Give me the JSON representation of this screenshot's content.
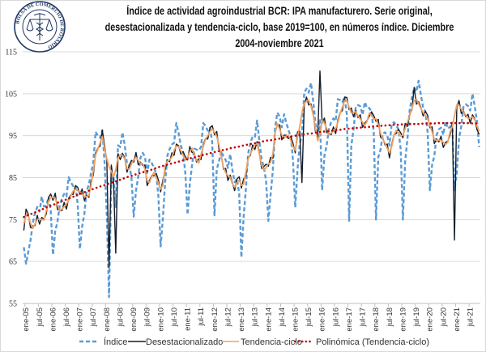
{
  "logo": {
    "text": "BOLSA DE COMERCIO DE ROSARIO",
    "color": "#1F3864"
  },
  "title_lines": [
    "Índice de actividad agroindustrial BCR: IPA manufacturero. Serie original,",
    "desestacionalizada y tendencia-ciclo, base 2019=100, en números índice. Diciembre",
    "2004-noviembre 2021"
  ],
  "chart_data": {
    "type": "line",
    "title": "Índice de actividad agroindustrial BCR: IPA manufacturero. Serie original, desestacionalizada y tendencia-ciclo, base 2019=100, en números índice. Diciembre 2004-noviembre 2021",
    "period": [
      "2004-12",
      "2021-11"
    ],
    "frequency": "monthly",
    "xlabel": "",
    "ylabel": "",
    "ylim": [
      55,
      115
    ],
    "yticks": [
      55,
      65,
      75,
      85,
      95,
      105,
      115
    ],
    "xtick_labels": [
      "ene-05",
      "jul-05",
      "ene-06",
      "jul-06",
      "ene-07",
      "jul-07",
      "ene-08",
      "jul-08",
      "ene-09",
      "jul-09",
      "ene-10",
      "jul-10",
      "ene-11",
      "jul-11",
      "ene-12",
      "jul-12",
      "ene-13",
      "jul-13",
      "ene-14",
      "jul-14",
      "ene-15",
      "jul-15",
      "ene-16",
      "jul-16",
      "ene-17",
      "jul-17",
      "ene-18",
      "jul-18",
      "ene-19",
      "jul-19",
      "ene-20",
      "jul-20",
      "ene-21",
      "jul-21"
    ],
    "grid": true,
    "legend_position": "bottom",
    "series": [
      {
        "name": "Índice",
        "color": "#5B9BD5",
        "style": "dashed",
        "values": [
          68.4,
          64.5,
          67.3,
          70.1,
          74.2,
          76.6,
          78.0,
          76.9,
          80.5,
          78.1,
          78.3,
          80.3,
          77.1,
          66.6,
          72.3,
          74.4,
          78.3,
          80.1,
          81.1,
          80.5,
          85.1,
          83.9,
          83.0,
          83.1,
          78.7,
          68.0,
          73.3,
          76.5,
          81.8,
          83.3,
          86.2,
          88.6,
          95.9,
          95.0,
          94.5,
          96.3,
          88.6,
          75.9,
          56.5,
          85.0,
          85.0,
          78.0,
          92.7,
          92.3,
          95.8,
          92.7,
          88.3,
          87.9,
          85.1,
          75.7,
          82.0,
          85.1,
          89.7,
          90.9,
          90.0,
          86.1,
          89.3,
          88.5,
          87.4,
          86.0,
          80.4,
          68.6,
          75.4,
          83.9,
          90.2,
          91.8,
          92.9,
          93.3,
          98.0,
          95.6,
          92.6,
          91.2,
          86.0,
          76.2,
          83.4,
          88.0,
          91.9,
          91.7,
          91.5,
          92.3,
          98.0,
          97.3,
          96.2,
          96.9,
          93.4,
          76.0,
          87.0,
          88.8,
          91.4,
          90.0,
          89.2,
          87.3,
          90.6,
          86.7,
          83.9,
          84.7,
          81.2,
          66.0,
          75.7,
          82.4,
          90.7,
          93.3,
          94.8,
          94.7,
          98.6,
          93.8,
          89.2,
          87.6,
          84.2,
          74.7,
          80.8,
          86.6,
          96.9,
          100.5,
          99.6,
          97.0,
          100.1,
          98.1,
          96.3,
          94.8,
          89.2,
          77.9,
          86.9,
          93.1,
          95.0,
          105.3,
          106.2,
          105.3,
          107.6,
          103.2,
          98.1,
          94.7,
          99.0,
          82.0,
          90.2,
          92.7,
          96.6,
          98.2,
          99.1,
          98.5,
          103.7,
          103.5,
          103.0,
          104.2,
          100.1,
          74.7,
          92.6,
          96.5,
          102.0,
          102.3,
          102.0,
          100.0,
          103.0,
          101.6,
          101.6,
          100.7,
          95.8,
          75.0,
          89.9,
          91.6,
          95.5,
          95.8,
          95.0,
          92.7,
          97.9,
          98.2,
          97.5,
          96.5,
          91.7,
          75.0,
          88.9,
          94.2,
          101.1,
          104.1,
          106.5,
          105.5,
          108.1,
          104.7,
          101.7,
          100.8,
          95.9,
          82.0,
          88.1,
          90.1,
          95.2,
          96.5,
          96.9,
          95.2,
          98.4,
          96.7,
          97.1,
          98.1,
          82.0,
          86.0,
          94.4,
          97.3,
          101.9,
          102.5,
          102.1,
          101.0,
          105.0,
          102.0,
          98.5,
          92.3
        ]
      },
      {
        "name": "Desestacionalizado",
        "color": "#141c2b",
        "style": "solid",
        "values": [
          72.4,
          77.5,
          76.3,
          73.1,
          73.2,
          73.6,
          76.0,
          73.9,
          75.5,
          75.1,
          76.3,
          80.3,
          81.1,
          79.6,
          81.3,
          77.4,
          77.3,
          77.1,
          79.1,
          77.5,
          80.1,
          80.9,
          81.0,
          83.1,
          82.7,
          81.0,
          82.3,
          79.5,
          80.8,
          80.3,
          84.2,
          85.6,
          90.9,
          92.0,
          92.5,
          96.3,
          92.6,
          88.9,
          63.5,
          88.0,
          84.0,
          67.0,
          90.7,
          89.3,
          90.8,
          89.7,
          86.3,
          87.9,
          89.1,
          88.7,
          91.0,
          88.1,
          88.7,
          87.9,
          88.0,
          83.1,
          84.3,
          85.5,
          85.4,
          86.0,
          84.4,
          81.6,
          84.4,
          86.9,
          89.2,
          88.8,
          90.9,
          90.3,
          93.0,
          92.6,
          90.6,
          91.2,
          90.0,
          89.2,
          92.4,
          91.0,
          90.9,
          88.7,
          89.5,
          89.3,
          93.0,
          94.3,
          94.2,
          96.9,
          97.4,
          95.2,
          96.0,
          91.8,
          90.4,
          87.0,
          87.2,
          84.3,
          85.6,
          83.7,
          81.9,
          84.7,
          85.2,
          82.5,
          84.7,
          85.4,
          89.7,
          90.3,
          92.8,
          91.7,
          93.6,
          90.8,
          87.2,
          87.6,
          88.2,
          87.7,
          89.8,
          89.6,
          95.9,
          97.5,
          97.6,
          94.0,
          95.1,
          95.1,
          94.3,
          94.8,
          93.2,
          90.9,
          95.9,
          96.1,
          83.8,
          102.3,
          104.2,
          102.3,
          102.6,
          100.2,
          96.1,
          94.7,
          110.4,
          98.0,
          99.2,
          95.7,
          95.6,
          95.2,
          97.1,
          95.5,
          98.7,
          100.5,
          101.0,
          104.2,
          104.1,
          101.2,
          101.6,
          99.5,
          101.0,
          99.3,
          100.0,
          97.0,
          98.0,
          98.6,
          99.6,
          100.7,
          99.8,
          98.4,
          98.9,
          94.6,
          94.5,
          92.8,
          93.0,
          89.7,
          92.9,
          95.2,
          95.5,
          96.5,
          95.7,
          94.5,
          97.9,
          97.2,
          100.1,
          101.1,
          106.5,
          102.5,
          103.1,
          101.7,
          99.7,
          100.8,
          99.9,
          96.9,
          97.1,
          93.1,
          94.2,
          93.5,
          94.9,
          92.2,
          93.4,
          93.7,
          95.1,
          98.1,
          70.1,
          101.7,
          103.4,
          100.3,
          100.9,
          99.5,
          100.1,
          98.0,
          100.0,
          99.0,
          96.5,
          95.3
        ]
      },
      {
        "name": "Tendencia-ciclo",
        "color": "#F0A060",
        "style": "solid",
        "values": [
          74.0,
          76.0,
          75.9,
          74.1,
          72.9,
          74.0,
          75.0,
          75.1,
          75.0,
          74.9,
          77.1,
          79.4,
          80.3,
          80.2,
          80.1,
          78.4,
          77.0,
          77.5,
          78.1,
          78.7,
          79.6,
          80.7,
          81.8,
          82.2,
          81.9,
          81.6,
          81.1,
          80.5,
          80.5,
          80.7,
          83.2,
          86.8,
          90.4,
          91.8,
          93.3,
          94.8,
          91.8,
          89.5,
          87.6,
          86.5,
          85.2,
          86.9,
          89.7,
          90.5,
          90.3,
          89.5,
          87.1,
          87.0,
          88.3,
          89.3,
          89.8,
          89.1,
          88.4,
          88.3,
          87.0,
          84.3,
          83.8,
          85.3,
          86.2,
          85.1,
          83.6,
          82.2,
          83.2,
          87.9,
          88.9,
          89.2,
          89.9,
          91.5,
          92.5,
          92.4,
          91.4,
          90.3,
          89.2,
          89.8,
          91.2,
          92.0,
          90.6,
          89.1,
          88.5,
          90.5,
          92.5,
          94.1,
          95.0,
          96.0,
          96.6,
          95.8,
          94.8,
          92.8,
          90.1,
          87.4,
          86.2,
          85.5,
          85.1,
          83.5,
          82.7,
          83.8,
          84.4,
          83.1,
          83.5,
          86.4,
          89.4,
          90.7,
          91.8,
          92.9,
          93.1,
          90.6,
          88.0,
          86.7,
          87.4,
          88.3,
          88.6,
          90.6,
          95.6,
          97.9,
          96.6,
          95.2,
          94.6,
          94.9,
          95.1,
          93.9,
          92.4,
          91.5,
          94.7,
          97.1,
          100.5,
          102.7,
          103.2,
          103.5,
          102.1,
          100.0,
          96.9,
          93.8,
          95.3,
          98.6,
          98.0,
          96.7,
          95.3,
          95.6,
          96.1,
          96.7,
          98.2,
          100.3,
          101.8,
          103.3,
          103.3,
          101.8,
          100.4,
          100.5,
          100.7,
          99.7,
          99.0,
          98.2,
          97.5,
          98.4,
          100.4,
          99.8,
          99.0,
          99.0,
          97.7,
          95.6,
          94.2,
          93.2,
          92.0,
          90.9,
          92.4,
          95.0,
          96.3,
          95.6,
          94.9,
          95.1,
          96.7,
          98.2,
          99.8,
          101.5,
          103.3,
          103.7,
          102.6,
          101.5,
          100.5,
          99.9,
          99.1,
          97.5,
          95.9,
          94.1,
          93.9,
          93.9,
          93.9,
          93.4,
          92.9,
          93.5,
          95.9,
          97.2,
          99.7,
          102.3,
          102.2,
          101.3,
          100.6,
          99.9,
          99.1,
          99.2,
          99.5,
          98.8,
          97.3,
          96.1
        ]
      },
      {
        "name": "Polinómica (Tendencia-ciclo)",
        "color": "#C00000",
        "style": "dotted",
        "values": [
          75.6,
          75.8,
          76.1,
          76.3,
          76.5,
          76.7,
          77.0,
          77.2,
          77.4,
          77.6,
          77.9,
          78.1,
          78.3,
          78.5,
          78.7,
          79.0,
          79.2,
          79.4,
          79.6,
          79.8,
          80.0,
          80.2,
          80.4,
          80.7,
          80.9,
          81.1,
          81.3,
          81.5,
          81.7,
          81.9,
          82.1,
          82.3,
          82.5,
          82.7,
          82.9,
          83.0,
          83.2,
          83.4,
          83.6,
          83.8,
          83.9,
          84.1,
          84.3,
          84.5,
          84.7,
          84.9,
          85.1,
          85.3,
          85.4,
          85.6,
          85.8,
          85.9,
          86.1,
          86.3,
          86.4,
          86.6,
          86.8,
          86.9,
          87.1,
          87.3,
          87.5,
          87.6,
          87.8,
          87.9,
          88.1,
          88.2,
          88.4,
          88.5,
          88.7,
          88.8,
          89.0,
          89.1,
          89.3,
          89.4,
          89.6,
          89.7,
          89.8,
          90.0,
          90.1,
          90.3,
          90.4,
          90.5,
          90.7,
          90.8,
          91.0,
          91.1,
          91.2,
          91.3,
          91.5,
          91.6,
          91.7,
          91.8,
          92.0,
          92.1,
          92.2,
          92.3,
          92.4,
          92.5,
          92.7,
          92.8,
          92.9,
          93.0,
          93.1,
          93.2,
          93.3,
          93.4,
          93.5,
          93.7,
          93.8,
          93.9,
          93.9,
          94.0,
          94.1,
          94.2,
          94.3,
          94.4,
          94.5,
          94.6,
          94.7,
          94.8,
          94.9,
          95.0,
          95.1,
          95.1,
          95.2,
          95.3,
          95.4,
          95.5,
          95.5,
          95.6,
          95.7,
          95.8,
          95.9,
          95.9,
          96.0,
          96.0,
          96.1,
          96.2,
          96.2,
          96.3,
          96.4,
          96.4,
          96.5,
          96.6,
          96.6,
          96.7,
          96.7,
          96.8,
          96.8,
          96.9,
          96.9,
          97.0,
          97.0,
          97.1,
          97.1,
          97.2,
          97.2,
          97.3,
          97.3,
          97.3,
          97.4,
          97.4,
          97.5,
          97.5,
          97.5,
          97.6,
          97.6,
          97.6,
          97.7,
          97.7,
          97.7,
          97.7,
          97.8,
          97.8,
          97.8,
          97.8,
          97.8,
          97.8,
          97.9,
          97.9,
          97.9,
          97.9,
          97.9,
          97.9,
          98.0,
          98.0,
          98.0,
          98.0,
          98.0,
          98.0,
          98.0,
          98.0,
          98.0,
          98.0,
          98.0,
          98.0,
          98.0,
          98.0,
          98.0,
          98.0,
          97.9,
          97.9,
          97.9,
          97.9
        ]
      }
    ]
  }
}
